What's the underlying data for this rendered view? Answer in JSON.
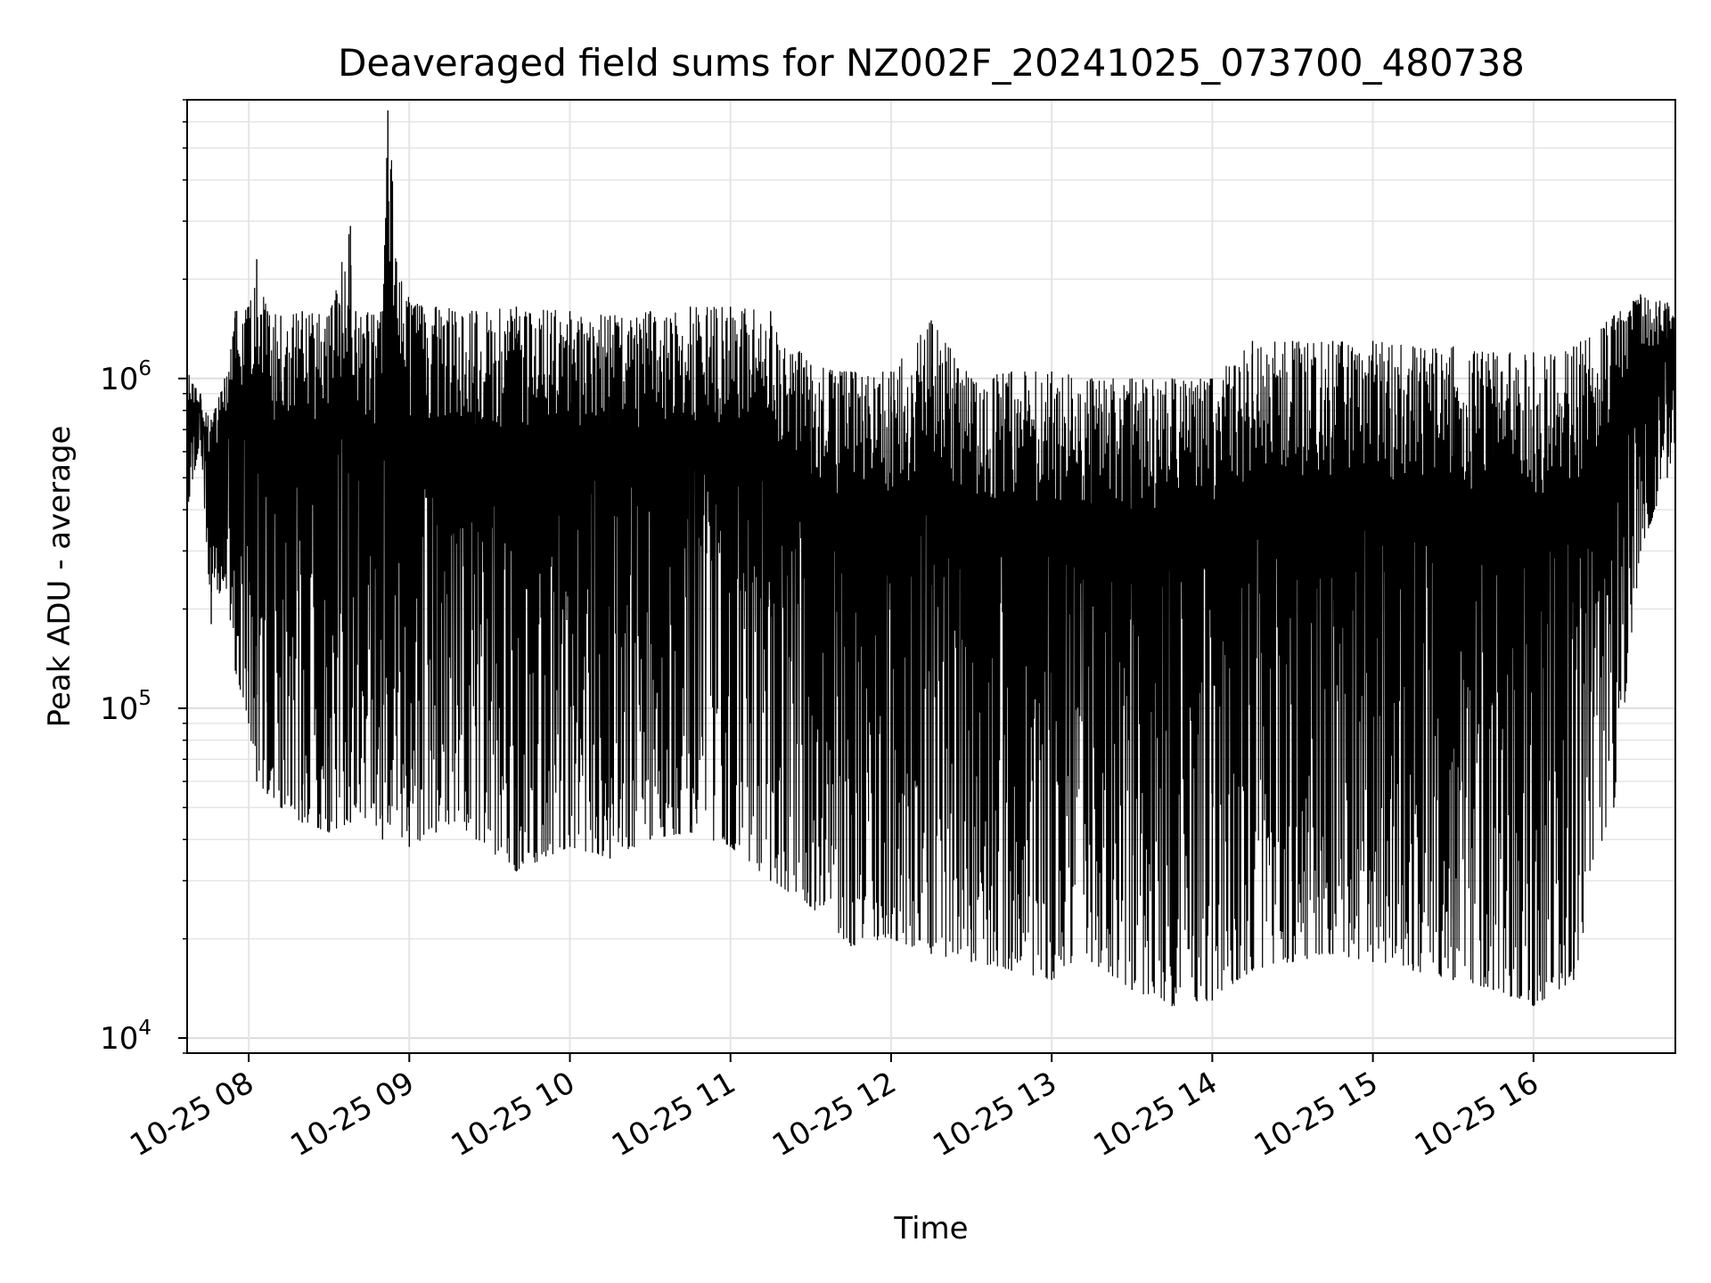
{
  "chart_data": {
    "type": "line",
    "title": "Deaveraged field sums for NZ002F_20241025_073700_480738",
    "xlabel": "Time",
    "ylabel": "Peak ADU - average",
    "y_scale": "log",
    "ylim": [
      9000,
      7000000
    ],
    "xlim": [
      "2024-10-25 07:37",
      "2024-10-25 16:53"
    ],
    "grid": true,
    "line_color": "#000000",
    "x_tick_labels": [
      "10-25 08",
      "10-25 09",
      "10-25 10",
      "10-25 11",
      "10-25 12",
      "10-25 13",
      "10-25 14",
      "10-25 15",
      "10-25 16"
    ],
    "x_tick_times": [
      "2024-10-25 08:00",
      "2024-10-25 09:00",
      "2024-10-25 10:00",
      "2024-10-25 11:00",
      "2024-10-25 12:00",
      "2024-10-25 13:00",
      "2024-10-25 14:00",
      "2024-10-25 15:00",
      "2024-10-25 16:00"
    ],
    "y_ticks": [
      {
        "value": 10000,
        "base": "10",
        "exp": "4"
      },
      {
        "value": 100000,
        "base": "10",
        "exp": "5"
      },
      {
        "value": 1000000,
        "base": "10",
        "exp": "6"
      }
    ],
    "series": [
      {
        "x": [
          "2024-10-25 07:37",
          "2024-10-25 07:42",
          "2024-10-25 07:46",
          "2024-10-25 07:51",
          "2024-10-25 07:55",
          "2024-10-25 08:00",
          "2024-10-25 08:03",
          "2024-10-25 08:07",
          "2024-10-25 08:12",
          "2024-10-25 08:20",
          "2024-10-25 08:30",
          "2024-10-25 08:38",
          "2024-10-25 08:40",
          "2024-10-25 08:50",
          "2024-10-25 08:52",
          "2024-10-25 09:00",
          "2024-10-25 09:10",
          "2024-10-25 09:25",
          "2024-10-25 09:40",
          "2024-10-25 10:00",
          "2024-10-25 10:15",
          "2024-10-25 10:30",
          "2024-10-25 10:45",
          "2024-10-25 11:00",
          "2024-10-25 11:15",
          "2024-10-25 11:30",
          "2024-10-25 11:45",
          "2024-10-25 12:00",
          "2024-10-25 12:15",
          "2024-10-25 12:30",
          "2024-10-25 12:45",
          "2024-10-25 13:00",
          "2024-10-25 13:15",
          "2024-10-25 13:30",
          "2024-10-25 13:45",
          "2024-10-25 14:00",
          "2024-10-25 14:15",
          "2024-10-25 14:30",
          "2024-10-25 14:45",
          "2024-10-25 15:00",
          "2024-10-25 15:15",
          "2024-10-25 15:30",
          "2024-10-25 15:45",
          "2024-10-25 16:00",
          "2024-10-25 16:15",
          "2024-10-25 16:30",
          "2024-10-25 16:40",
          "2024-10-25 16:50",
          "2024-10-25 16:53"
        ],
        "y_high": [
          1050000,
          900000,
          750000,
          1000000,
          1600000,
          1650000,
          2300000,
          1600000,
          1550000,
          1600000,
          1550000,
          2900000,
          1600000,
          1600000,
          6500000,
          1700000,
          1650000,
          1600000,
          1650000,
          1600000,
          1550000,
          1600000,
          1650000,
          1650000,
          1600000,
          1100000,
          1050000,
          1050000,
          1500000,
          1000000,
          1050000,
          1050000,
          1000000,
          1000000,
          1000000,
          1000000,
          1300000,
          1300000,
          1300000,
          1300000,
          1250000,
          1250000,
          1200000,
          1200000,
          1250000,
          1550000,
          1800000,
          1700000,
          1500000
        ],
        "y_low": [
          400000,
          650000,
          180000,
          250000,
          130000,
          90000,
          60000,
          55000,
          50000,
          45000,
          42000,
          45000,
          50000,
          40000,
          45000,
          38000,
          42000,
          40000,
          32000,
          38000,
          35000,
          40000,
          42000,
          38000,
          30000,
          25000,
          19000,
          20000,
          18000,
          17000,
          16000,
          15000,
          17000,
          14000,
          12500,
          13000,
          16000,
          17000,
          18000,
          17000,
          16000,
          15000,
          14000,
          12500,
          15000,
          50000,
          300000,
          500000,
          600000
        ]
      }
    ]
  }
}
